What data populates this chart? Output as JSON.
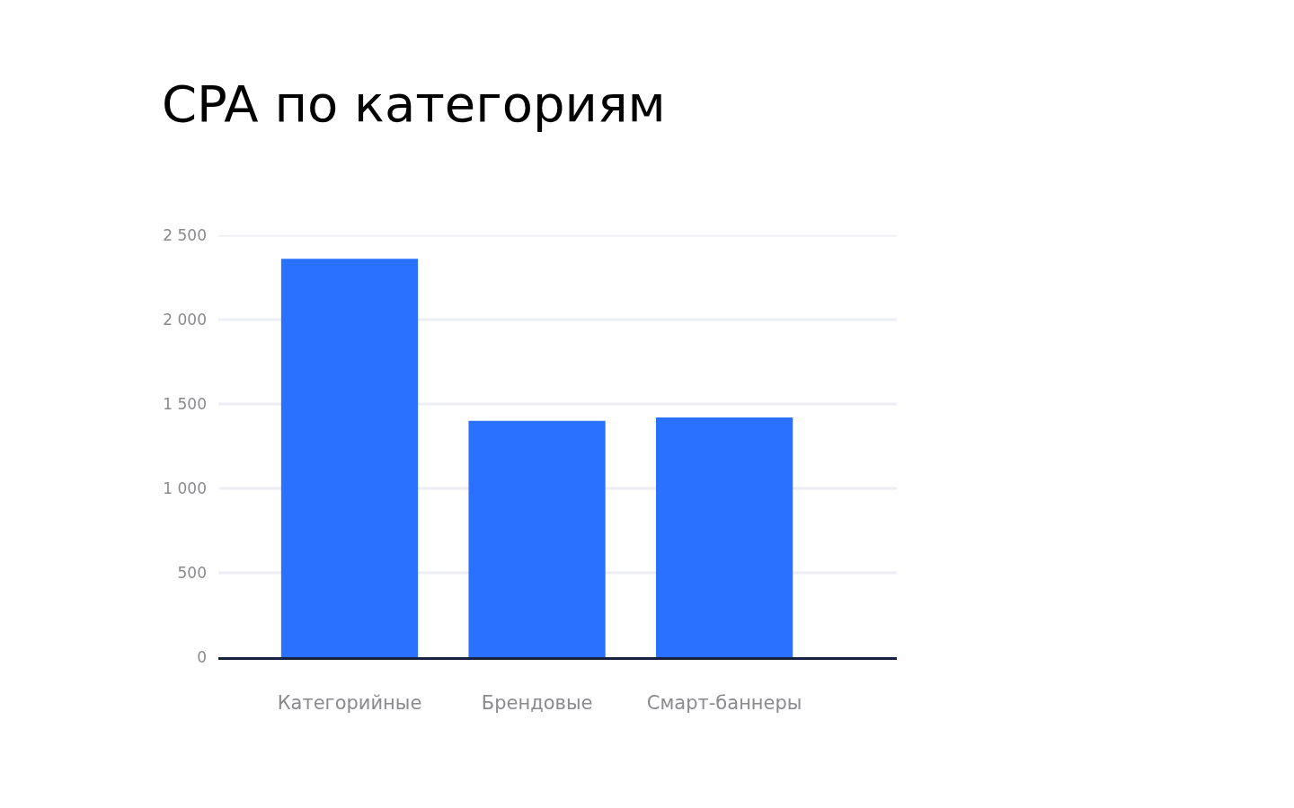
{
  "chart_data": {
    "type": "bar",
    "title": "CPA по категориям",
    "categories": [
      "Категорийные",
      "Брендовые",
      "Смарт-баннеры"
    ],
    "values": [
      2360,
      1400,
      1420
    ],
    "color": "#2b71ff",
    "ylim": [
      0,
      2500
    ],
    "yticks": [
      {
        "value": 0,
        "label": "0"
      },
      {
        "value": 500,
        "label": "500"
      },
      {
        "value": 1000,
        "label": "1 000"
      },
      {
        "value": 1500,
        "label": "1 500"
      },
      {
        "value": 2000,
        "label": "2 000"
      },
      {
        "value": 2500,
        "label": "2 500"
      }
    ],
    "grid": "y"
  }
}
